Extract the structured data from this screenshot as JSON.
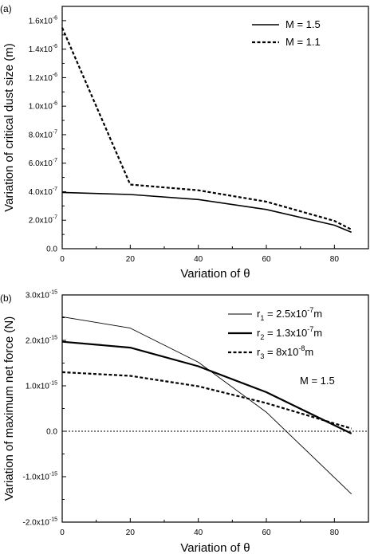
{
  "chart_data": [
    {
      "panel_label": "(a)",
      "type": "line",
      "xlabel": "Variation of θ",
      "ylabel": "Variation of critical dust size (m)",
      "xlim": [
        0,
        90
      ],
      "ylim": [
        0,
        1.7e-06
      ],
      "x_ticks": [
        0,
        20,
        40,
        60,
        80
      ],
      "y_ticks": [
        {
          "value": 0,
          "mantissa": "0.0",
          "exp": ""
        },
        {
          "value": 2e-07,
          "mantissa": "2.0x10",
          "exp": "-7"
        },
        {
          "value": 4e-07,
          "mantissa": "4.0x10",
          "exp": "-7"
        },
        {
          "value": 6e-07,
          "mantissa": "6.0x10",
          "exp": "-7"
        },
        {
          "value": 8e-07,
          "mantissa": "8.0x10",
          "exp": "-7"
        },
        {
          "value": 1e-06,
          "mantissa": "1.0x10",
          "exp": "-6"
        },
        {
          "value": 1.2e-06,
          "mantissa": "1.2x10",
          "exp": "-6"
        },
        {
          "value": 1.4e-06,
          "mantissa": "1.4x10",
          "exp": "-6"
        },
        {
          "value": 1.6e-06,
          "mantissa": "1.6x10",
          "exp": "-6"
        }
      ],
      "legend_placement": "top-right",
      "series": [
        {
          "name": "M = 1.5",
          "style": "solid",
          "width": 1.6,
          "x": [
            0,
            20,
            40,
            60,
            80,
            85
          ],
          "y": [
            3.95e-07,
            3.8e-07,
            3.45e-07,
            2.75e-07,
            1.65e-07,
            1.15e-07
          ]
        },
        {
          "name": "M = 1.1",
          "style": "dashed",
          "width": 2.2,
          "x": [
            0,
            20,
            40,
            60,
            80,
            85
          ],
          "y": [
            1.55e-06,
            4.5e-07,
            4.1e-07,
            3.3e-07,
            1.95e-07,
            1.35e-07
          ]
        }
      ]
    },
    {
      "panel_label": "(b)",
      "type": "line",
      "xlabel": "Variation of θ",
      "ylabel": "Variation of maximum net force (N)",
      "xlim": [
        0,
        90
      ],
      "ylim": [
        -2e-15,
        3e-15
      ],
      "x_ticks": [
        0,
        20,
        40,
        60,
        80
      ],
      "y_ticks": [
        {
          "value": -2e-15,
          "mantissa": "-2.0x10",
          "exp": "-15"
        },
        {
          "value": -1e-15,
          "mantissa": "-1.0x10",
          "exp": "-15"
        },
        {
          "value": 0,
          "mantissa": "0.0",
          "exp": ""
        },
        {
          "value": 1e-15,
          "mantissa": "1.0x10",
          "exp": "-15"
        },
        {
          "value": 2e-15,
          "mantissa": "2.0x10",
          "exp": "-15"
        },
        {
          "value": 3e-15,
          "mantissa": "3.0x10",
          "exp": "-15"
        }
      ],
      "zero_line": true,
      "legend_placement": "top-right",
      "annotation": "M = 1.5",
      "series": [
        {
          "name": "r",
          "sub": "1",
          "eq": " = 2.5x10",
          "sup": "-7",
          "unit": "m",
          "style": "solid",
          "width": 0.9,
          "x": [
            0,
            20,
            40,
            60,
            85
          ],
          "y": [
            2.52e-15,
            2.27e-15,
            1.52e-15,
            4.2e-16,
            -1.38e-15
          ]
        },
        {
          "name": "r",
          "sub": "2",
          "eq": " = 1.3x10",
          "sup": "-7",
          "unit": "m",
          "style": "solid",
          "width": 2.2,
          "x": [
            0,
            20,
            40,
            60,
            85
          ],
          "y": [
            1.97e-15,
            1.84e-15,
            1.43e-15,
            8.6e-16,
            -5e-17
          ]
        },
        {
          "name": "r",
          "sub": "3",
          "eq": " = 8x10",
          "sup": "-8",
          "unit": "m",
          "style": "dashed",
          "width": 2.2,
          "x": [
            0,
            20,
            40,
            60,
            85
          ],
          "y": [
            1.3e-15,
            1.22e-15,
            9.9e-16,
            6.2e-16,
            6e-17
          ]
        }
      ]
    }
  ]
}
